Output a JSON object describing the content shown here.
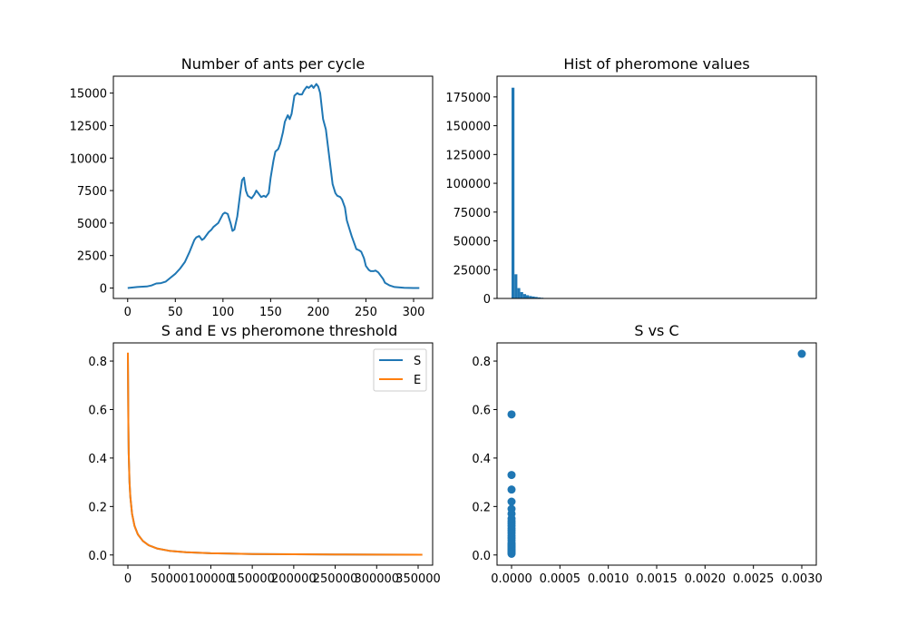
{
  "colors": {
    "blue": "#1f77b4",
    "orange": "#ff7f0e"
  },
  "chart_data": [
    {
      "type": "line",
      "title": "Number of ants per cycle",
      "xlabel": "",
      "ylabel": "",
      "xlim": [
        -15,
        320
      ],
      "ylim": [
        -800,
        16300
      ],
      "xticks": [
        0,
        50,
        100,
        150,
        200,
        250,
        300
      ],
      "xtick_labels": [
        "0",
        "50",
        "100",
        "150",
        "200",
        "250",
        "300"
      ],
      "yticks": [
        0,
        2500,
        5000,
        7500,
        10000,
        12500,
        15000
      ],
      "ytick_labels": [
        "0",
        "2500",
        "5000",
        "7500",
        "10000",
        "12500",
        "15000"
      ],
      "grid": false,
      "series": [
        {
          "x": [
            0,
            10,
            20,
            25,
            30,
            35,
            40,
            45,
            50,
            55,
            60,
            65,
            70,
            72,
            75,
            78,
            80,
            85,
            88,
            90,
            95,
            100,
            102,
            105,
            108,
            110,
            112,
            115,
            118,
            120,
            122,
            124,
            126,
            128,
            130,
            133,
            135,
            137,
            140,
            143,
            145,
            148,
            150,
            153,
            155,
            158,
            160,
            163,
            165,
            168,
            170,
            172,
            175,
            178,
            180,
            183,
            185,
            188,
            190,
            193,
            195,
            198,
            200,
            202,
            205,
            208,
            210,
            213,
            215,
            218,
            220,
            223,
            225,
            228,
            230,
            235,
            240,
            243,
            245,
            248,
            250,
            253,
            255,
            258,
            260,
            263,
            265,
            268,
            270,
            275,
            280,
            290,
            300,
            306
          ],
          "y": [
            0,
            80,
            120,
            200,
            350,
            380,
            500,
            800,
            1100,
            1500,
            2000,
            2800,
            3700,
            3900,
            4000,
            3700,
            3800,
            4300,
            4500,
            4700,
            5000,
            5700,
            5800,
            5700,
            5000,
            4400,
            4500,
            5500,
            7200,
            8300,
            8500,
            7500,
            7100,
            7000,
            6900,
            7200,
            7500,
            7300,
            7000,
            7100,
            7000,
            7300,
            8500,
            9800,
            10500,
            10700,
            11100,
            12000,
            12800,
            13300,
            13000,
            13400,
            14800,
            15000,
            14900,
            14900,
            15200,
            15500,
            15400,
            15600,
            15400,
            15700,
            15500,
            15000,
            13000,
            12200,
            11000,
            9200,
            8000,
            7300,
            7100,
            7000,
            6800,
            6200,
            5200,
            4000,
            3000,
            2900,
            2800,
            2300,
            1700,
            1400,
            1300,
            1300,
            1350,
            1200,
            1000,
            700,
            400,
            200,
            80,
            20,
            5,
            0
          ]
        }
      ]
    },
    {
      "type": "bar",
      "title": "Hist of pheromone values",
      "xlabel": "",
      "ylabel": "",
      "xlim": [
        -5,
        105
      ],
      "ylim": [
        0,
        193000
      ],
      "yticks": [
        0,
        25000,
        50000,
        75000,
        100000,
        125000,
        150000,
        175000
      ],
      "ytick_labels": [
        "0",
        "25000",
        "50000",
        "75000",
        "100000",
        "125000",
        "150000",
        "175000"
      ],
      "grid": false,
      "bin_width": 1,
      "bin_starts": [
        0,
        1,
        2,
        3,
        4,
        5,
        6,
        7,
        8,
        9,
        10,
        11,
        12
      ],
      "values": [
        183000,
        21000,
        9000,
        5500,
        3800,
        2800,
        2100,
        1700,
        1300,
        900,
        600,
        300,
        150
      ]
    },
    {
      "type": "line",
      "title": "S and E vs pheromone threshold",
      "xlabel": "",
      "ylabel": "",
      "xlim": [
        -17500,
        367500
      ],
      "ylim": [
        -0.042,
        0.875
      ],
      "xticks": [
        0,
        50000,
        100000,
        150000,
        200000,
        250000,
        300000,
        350000
      ],
      "xtick_labels": [
        "0",
        "50000",
        "100000",
        "150000",
        "200000",
        "250000",
        "300000",
        "350000"
      ],
      "yticks": [
        0,
        0.2,
        0.4,
        0.6,
        0.8
      ],
      "ytick_labels": [
        "0.0",
        "0.2",
        "0.4",
        "0.6",
        "0.8"
      ],
      "grid": false,
      "legend_position": "upper right",
      "series": [
        {
          "name": "S",
          "color": "#1f77b4",
          "x": [
            0,
            500,
            1000,
            2000,
            3000,
            5000,
            8000,
            12000,
            18000,
            25000,
            35000,
            50000,
            70000,
            100000,
            150000,
            200000,
            250000,
            300000,
            355000
          ],
          "y": [
            0.833,
            0.55,
            0.42,
            0.3,
            0.24,
            0.17,
            0.12,
            0.085,
            0.058,
            0.04,
            0.027,
            0.017,
            0.011,
            0.007,
            0.004,
            0.003,
            0.002,
            0.0015,
            0.001
          ]
        },
        {
          "name": "E",
          "color": "#ff7f0e",
          "x": [
            0,
            500,
            1000,
            2000,
            3000,
            5000,
            8000,
            12000,
            18000,
            25000,
            35000,
            50000,
            70000,
            100000,
            150000,
            200000,
            250000,
            300000,
            355000
          ],
          "y": [
            0.835,
            0.55,
            0.42,
            0.3,
            0.24,
            0.17,
            0.12,
            0.085,
            0.058,
            0.04,
            0.027,
            0.017,
            0.011,
            0.007,
            0.004,
            0.003,
            0.002,
            0.0015,
            0.001
          ]
        }
      ]
    },
    {
      "type": "scatter",
      "title": "S vs C",
      "xlabel": "",
      "ylabel": "",
      "xlim": [
        -0.00015,
        0.00315
      ],
      "ylim": [
        -0.042,
        0.875
      ],
      "xticks": [
        0,
        0.0005,
        0.001,
        0.0015,
        0.002,
        0.0025,
        0.003
      ],
      "xtick_labels": [
        "0.0000",
        "0.0005",
        "0.0010",
        "0.0015",
        "0.0020",
        "0.0025",
        "0.0030"
      ],
      "yticks": [
        0,
        0.2,
        0.4,
        0.6,
        0.8
      ],
      "ytick_labels": [
        "0.0",
        "0.2",
        "0.4",
        "0.6",
        "0.8"
      ],
      "grid": false,
      "series": [
        {
          "x": [
            0.003,
            0,
            0,
            0,
            0,
            0,
            0,
            0,
            0,
            0,
            0,
            0,
            0,
            0,
            0,
            0,
            0,
            0,
            0,
            0,
            0,
            0,
            0,
            0,
            0,
            0,
            0
          ],
          "y": [
            0.83,
            0.58,
            0.33,
            0.27,
            0.22,
            0.19,
            0.17,
            0.15,
            0.14,
            0.13,
            0.12,
            0.11,
            0.1,
            0.09,
            0.08,
            0.07,
            0.06,
            0.05,
            0.045,
            0.04,
            0.035,
            0.03,
            0.025,
            0.02,
            0.015,
            0.01,
            0.005
          ]
        }
      ]
    }
  ]
}
